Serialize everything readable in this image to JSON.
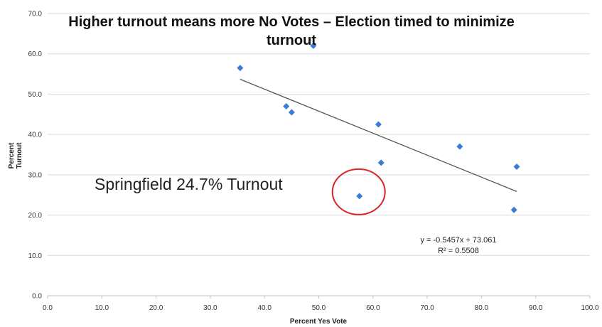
{
  "chart_data": {
    "type": "scatter",
    "title": "Higher turnout means more No Votes – Election timed to minimize turnout",
    "xlabel": "Percent Yes Vote",
    "ylabel": "Percent Turnout",
    "xlim": [
      0,
      100
    ],
    "ylim": [
      0,
      70
    ],
    "x_ticks": [
      "0.0",
      "10.0",
      "20.0",
      "30.0",
      "40.0",
      "50.0",
      "60.0",
      "70.0",
      "80.0",
      "90.0",
      "100.0"
    ],
    "y_ticks": [
      "0.0",
      "10.0",
      "20.0",
      "30.0",
      "40.0",
      "50.0",
      "60.0",
      "70.0"
    ],
    "grid": "horizontal",
    "marker_color": "#3a7bd5",
    "trendline_color": "#555555",
    "highlight_color": "#d9252a",
    "series": [
      {
        "points": [
          {
            "x": 35.5,
            "y": 56.5
          },
          {
            "x": 44.0,
            "y": 47.0
          },
          {
            "x": 45.0,
            "y": 45.5
          },
          {
            "x": 49.0,
            "y": 62.0
          },
          {
            "x": 57.5,
            "y": 24.7
          },
          {
            "x": 61.0,
            "y": 42.5
          },
          {
            "x": 61.5,
            "y": 33.0
          },
          {
            "x": 76.0,
            "y": 37.0
          },
          {
            "x": 86.0,
            "y": 21.3
          },
          {
            "x": 86.5,
            "y": 32.0
          }
        ]
      }
    ],
    "trendline": {
      "slope": -0.5457,
      "intercept": 73.061,
      "x_range": [
        35.5,
        86.5
      ]
    },
    "equation": "y = -0.5457x + 73.061",
    "r_squared": "R² = 0.5508",
    "annotation": "Springfield 24.7% Turnout",
    "highlighted_point": {
      "x": 57.5,
      "y": 24.7
    }
  }
}
